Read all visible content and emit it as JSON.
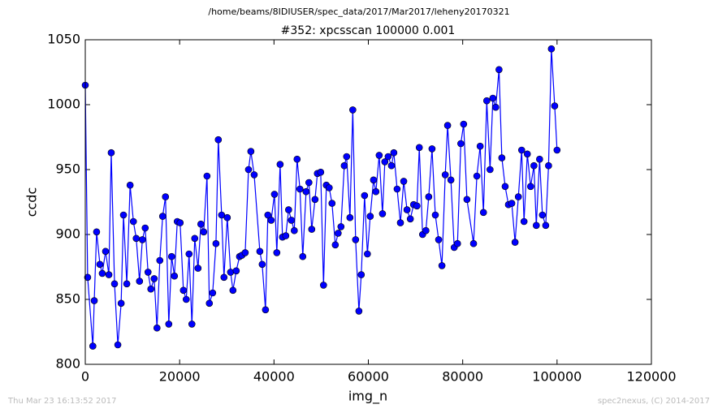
{
  "chart_data": {
    "type": "line",
    "suptitle": "/home/beams/8IDIUSER/spec_data/2017/Mar2017/leheny20170321",
    "title": "#352: xpcsscan 100000 0.001",
    "xlabel": "img_n",
    "ylabel": "ccdc",
    "footer_left": "Thu Mar 23 16:13:52 2017",
    "footer_right": "spec2nexus, (C) 2014-2017",
    "color": "#0000ff",
    "xlim": [
      0,
      120000
    ],
    "xticks": [
      0,
      20000,
      40000,
      60000,
      80000,
      100000,
      120000
    ],
    "ylim": [
      800,
      1050
    ],
    "yticks": [
      800,
      850,
      900,
      950,
      1000,
      1050
    ],
    "x": [
      0,
      500,
      1600,
      1900,
      2400,
      3100,
      3600,
      4300,
      5000,
      5500,
      6200,
      6900,
      7600,
      8100,
      8800,
      9500,
      10200,
      10800,
      11500,
      12100,
      12700,
      13300,
      13900,
      14600,
      15200,
      15800,
      16400,
      17000,
      17700,
      18300,
      18900,
      19500,
      20100,
      20800,
      21400,
      22000,
      22600,
      23200,
      23900,
      24500,
      25100,
      25800,
      26300,
      27000,
      27700,
      28200,
      28900,
      29400,
      30100,
      30800,
      31300,
      32000,
      32700,
      33200,
      33900,
      34600,
      35100,
      35800,
      37000,
      37500,
      38200,
      38700,
      39400,
      40100,
      40600,
      41300,
      41800,
      42500,
      43100,
      43700,
      44300,
      44900,
      45500,
      46100,
      46800,
      47400,
      48000,
      48700,
      49200,
      49900,
      50500,
      51100,
      51700,
      52300,
      53000,
      53600,
      54200,
      54900,
      55400,
      56100,
      56700,
      57300,
      58000,
      58500,
      59200,
      59800,
      60400,
      61100,
      61600,
      62300,
      63000,
      63500,
      64200,
      64900,
      65400,
      66100,
      66800,
      67500,
      68200,
      68900,
      69600,
      70300,
      70800,
      71500,
      72200,
      72800,
      73500,
      74200,
      74900,
      75600,
      76300,
      76800,
      77500,
      78200,
      78900,
      79600,
      80200,
      80900,
      82300,
      83000,
      83700,
      84400,
      85100,
      85800,
      86400,
      87000,
      87700,
      88300,
      89000,
      89700,
      90400,
      91100,
      91800,
      92500,
      93000,
      93700,
      94400,
      95100,
      95600,
      96300,
      96900,
      97600,
      98200,
      98800,
      99500,
      100000
    ],
    "values": [
      1015,
      867,
      814,
      849,
      902,
      877,
      870,
      887,
      869,
      963,
      862,
      815,
      847,
      915,
      862,
      938,
      910,
      897,
      864,
      896,
      905,
      871,
      858,
      866,
      828,
      880,
      914,
      929,
      831,
      883,
      868,
      910,
      909,
      857,
      850,
      885,
      831,
      897,
      874,
      908,
      902,
      945,
      847,
      855,
      893,
      973,
      915,
      867,
      913,
      871,
      857,
      872,
      883,
      884,
      886,
      950,
      964,
      946,
      887,
      877,
      842,
      915,
      911,
      931,
      886,
      954,
      898,
      899,
      919,
      911,
      903,
      958,
      935,
      883,
      933,
      940,
      904,
      927,
      947,
      948,
      861,
      938,
      936,
      924,
      892,
      901,
      906,
      953,
      960,
      913,
      996,
      896,
      841,
      869,
      930,
      885,
      914,
      942,
      933,
      961,
      916,
      956,
      960,
      953,
      963,
      935,
      909,
      941,
      919,
      912,
      923,
      922,
      967,
      900,
      903,
      929,
      966,
      915,
      896,
      876,
      946,
      984,
      942,
      890,
      893,
      970,
      985,
      927,
      893,
      945,
      968,
      917,
      1003,
      950,
      1005,
      998,
      1027,
      959,
      937,
      923,
      924,
      894,
      929,
      965,
      910,
      962,
      937,
      953,
      907,
      958,
      915,
      907,
      953,
      1043,
      999,
      965
    ]
  }
}
